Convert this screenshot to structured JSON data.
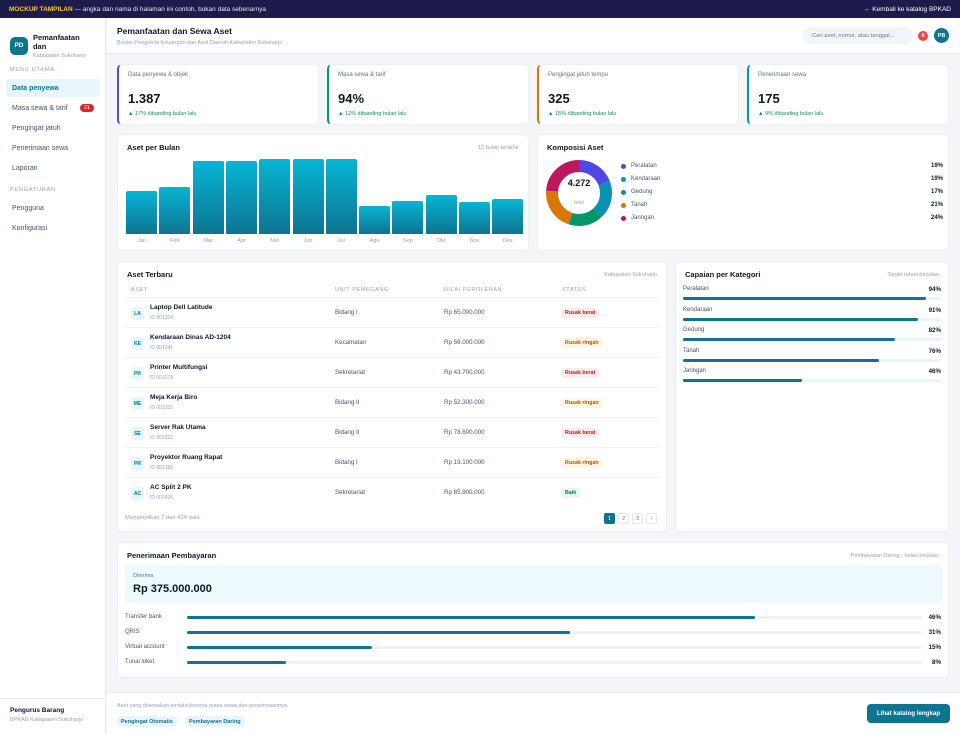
{
  "topbar": {
    "tag": "MOCKUP TAMPILAN",
    "notice": " — angka dan nama di halaman ini contoh, bukan data sebenarnya",
    "back_link": "← Kembali ke katalog BPKAD"
  },
  "sidebar": {
    "brand_initials": "PD",
    "brand_name": "Pemanfaatan dan",
    "brand_sub": "Kabupaten Sukoharjo",
    "section_main": "MENU UTAMA",
    "section_settings": "PENGATURAN",
    "items": [
      {
        "label": "Data penyewa",
        "active": true
      },
      {
        "label": "Masa sewa & tarif",
        "badge": "21"
      },
      {
        "label": "Pengingat jatuh"
      },
      {
        "label": "Penerimaan sewa"
      },
      {
        "label": "Laporan"
      }
    ],
    "settings_items": [
      {
        "label": "Pengguna"
      },
      {
        "label": "Konfigurasi"
      }
    ],
    "user_name": "Pengurus Barang",
    "user_role": "BPKAD Kabupaten Sukoharjo"
  },
  "header": {
    "title": "Pemanfaatan dan Sewa Aset",
    "subtitle": "Badan Pengelola Keuangan dan Aset Daerah Kabupaten Sukoharjo",
    "search_placeholder": "Cari aset, nomor, atau tanggal...",
    "notif_count": "8",
    "avatar_initials": "PB"
  },
  "kpis": [
    {
      "label": "Data penyewa & objek",
      "value": "1.387",
      "change": "▲ 17% dibanding bulan lalu",
      "accent": "#4f46e5"
    },
    {
      "label": "Masa sewa & tarif",
      "value": "94%",
      "change": "▲ 12% dibanding bulan lalu",
      "accent": "#059669"
    },
    {
      "label": "Pengingat jatuh tempo",
      "value": "325",
      "change": "▲ 15% dibanding bulan lalu",
      "accent": "#d97706"
    },
    {
      "label": "Penerimaan sewa",
      "value": "175",
      "change": "▲ 9% dibanding bulan lalu",
      "accent": "#0891b2"
    }
  ],
  "bar_chart": {
    "title": "Aset per Bulan",
    "note": "12 bulan terakhir",
    "chart_data": {
      "type": "bar",
      "categories": [
        "Jan",
        "Feb",
        "Mar",
        "Apr",
        "Mei",
        "Jun",
        "Jul",
        "Agu",
        "Sep",
        "Okt",
        "Nov",
        "Des"
      ],
      "values": [
        58,
        63,
        99,
        98,
        101,
        101,
        101,
        38,
        45,
        53,
        43,
        47
      ],
      "ylim": [
        0,
        101
      ]
    }
  },
  "donut": {
    "title": "Komposisi Aset",
    "total": "4.272",
    "total_label": "total",
    "chart_data": {
      "type": "pie",
      "categories": [
        "Peralatan",
        "Kendaraan",
        "Gedung",
        "Tanah",
        "Jaringan"
      ],
      "values": [
        19,
        19,
        17,
        21,
        24
      ],
      "labels": [
        "19%",
        "19%",
        "17%",
        "21%",
        "24%"
      ],
      "colors": [
        "#4f46e5",
        "#0891b2",
        "#059669",
        "#d97706",
        "#be185d"
      ]
    }
  },
  "table": {
    "title": "Aset Terbaru",
    "note": "Kabupaten Sukoharjo",
    "columns": [
      "ASET",
      "UNIT PEMEGANG",
      "NILAI PEROLEHAN",
      "STATUS"
    ],
    "rows": [
      {
        "initials": "LA",
        "name": "Laptop Dell Latitude",
        "id": "ID 001204",
        "unit": "Bidang I",
        "value": "Rp 65.000.000",
        "status": "Rusak berat",
        "status_type": "rb"
      },
      {
        "initials": "KE",
        "name": "Kendaraan Dinas AD-1204",
        "id": "ID 001241",
        "unit": "Kecamatan",
        "value": "Rp 56.000.000",
        "status": "Rusak ringan",
        "status_type": "rr"
      },
      {
        "initials": "PR",
        "name": "Printer Multifungsi",
        "id": "ID 001278",
        "unit": "Sekretariat",
        "value": "Rp 43.700.000",
        "status": "Rusak berat",
        "status_type": "rb"
      },
      {
        "initials": "ME",
        "name": "Meja Kerja Biro",
        "id": "ID 001315",
        "unit": "Bidang II",
        "value": "Rp 52.300.000",
        "status": "Rusak ringan",
        "status_type": "rr"
      },
      {
        "initials": "SE",
        "name": "Server Rak Utama",
        "id": "ID 001352",
        "unit": "Bidang II",
        "value": "Rp 78.600.000",
        "status": "Rusak berat",
        "status_type": "rb"
      },
      {
        "initials": "PR",
        "name": "Proyektor Ruang Rapat",
        "id": "ID 001389",
        "unit": "Bidang I",
        "value": "Rp 19.100.000",
        "status": "Rusak ringan",
        "status_type": "rr"
      },
      {
        "initials": "AC",
        "name": "AC Split 2 PK",
        "id": "ID 001426",
        "unit": "Sekretariat",
        "value": "Rp 85.900.000",
        "status": "Baik",
        "status_type": "b"
      }
    ],
    "footer": "Menampilkan 7 dari 424 data",
    "pages": [
      "1",
      "2",
      "3",
      "›"
    ]
  },
  "categories": {
    "title": "Capaian per Kategori",
    "note": "Target tahun berjalan",
    "items": [
      {
        "label": "Peralatan",
        "pct": "94%",
        "value": 94
      },
      {
        "label": "Kendaraan",
        "pct": "91%",
        "value": 91
      },
      {
        "label": "Gedung",
        "pct": "82%",
        "value": 82
      },
      {
        "label": "Tanah",
        "pct": "76%",
        "value": 76
      },
      {
        "label": "Jaringan",
        "pct": "46%",
        "value": 46
      }
    ]
  },
  "payments": {
    "title": "Penerimaan Pembayaran",
    "note": "Pembayaran Daring - bulan berjalan",
    "received_label": "Diterima",
    "received_value": "Rp 375.000.000",
    "methods": [
      {
        "label": "Transfer bank",
        "pct": "46%",
        "value": 46
      },
      {
        "label": "QRIS",
        "pct": "31%",
        "value": 31
      },
      {
        "label": "Virtual account",
        "pct": "15%",
        "value": 15
      },
      {
        "label": "Tunai loket",
        "pct": "8%",
        "value": 8
      }
    ]
  },
  "footer": {
    "text": "Aset yang disewakan terdata beserta masa sewa dan penerimaannya.",
    "chips": [
      "Pengingat Otomatis",
      "Pembayaran Daring"
    ],
    "cta": "Lihat katalog lengkap"
  }
}
